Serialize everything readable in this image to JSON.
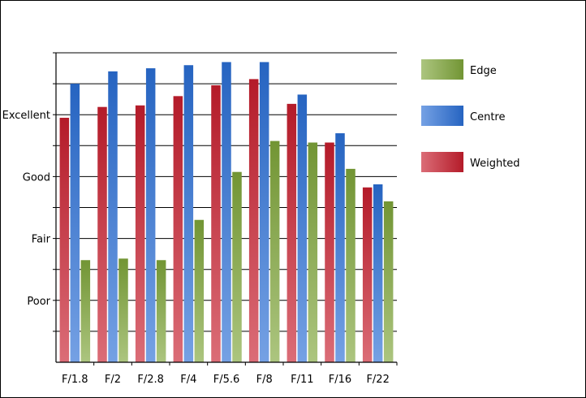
{
  "chart_data": {
    "type": "bar",
    "title": "",
    "xlabel": "",
    "ylabel": "",
    "categories": [
      "F/1.8",
      "F/2",
      "F/2.8",
      "F/4",
      "F/5.6",
      "F/8",
      "F/11",
      "F/16",
      "F/22"
    ],
    "ylim": [
      0,
      100
    ],
    "y_tick_labels": [
      {
        "label": "Poor",
        "value": 20
      },
      {
        "label": "Fair",
        "value": 40
      },
      {
        "label": "Good",
        "value": 60
      },
      {
        "label": "Excellent",
        "value": 80
      }
    ],
    "grid": true,
    "legend_position": "right",
    "series": [
      {
        "name": "Weighted",
        "color": "#c81e2e",
        "values": [
          79,
          82.5,
          83,
          86,
          89.5,
          91.5,
          83.5,
          71,
          56.5
        ]
      },
      {
        "name": "Centre",
        "color": "#2a6fd6",
        "values": [
          90,
          94,
          95,
          96,
          97,
          97,
          86.5,
          74,
          57.5
        ]
      },
      {
        "name": "Edge",
        "color": "#7fa63a",
        "values": [
          33,
          33.5,
          33,
          46,
          61.5,
          71.5,
          71,
          62.5,
          52
        ]
      }
    ],
    "legend_order": [
      "Edge",
      "Centre",
      "Weighted"
    ]
  }
}
